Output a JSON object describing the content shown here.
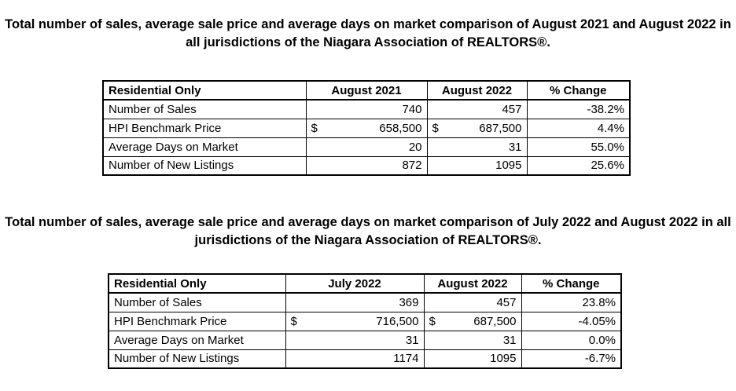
{
  "sections": [
    {
      "title": "Total number of sales, average sale price and average days on market comparison of August 2021 and August 2022 in all jurisdictions of the Niagara Association of REALTORS®.",
      "headers": [
        "Residential Only",
        "August 2021",
        "August 2022",
        "% Change"
      ],
      "rows": [
        {
          "label": "Number of Sales",
          "a": "740",
          "b": "457",
          "change": "-38.2%"
        },
        {
          "label": "HPI Benchmark Price",
          "a_sym": "$",
          "a": "658,500",
          "b_sym": "$",
          "b": "687,500",
          "change": "4.4%"
        },
        {
          "label": "Average Days on Market",
          "a": "20",
          "b": "31",
          "change": "55.0%"
        },
        {
          "label": "Number of New Listings",
          "a": "872",
          "b": "1095",
          "change": "25.6%"
        }
      ]
    },
    {
      "title": "Total number of sales, average sale price and average days on market comparison of July 2022 and August 2022 in all jurisdictions of the Niagara Association of REALTORS®.",
      "headers": [
        "Residential Only",
        "July 2022",
        "August 2022",
        "% Change"
      ],
      "rows": [
        {
          "label": "Number of Sales",
          "a": "369",
          "b": "457",
          "change": "23.8%"
        },
        {
          "label": "HPI Benchmark Price",
          "a_sym": "$",
          "a": "716,500",
          "b_sym": "$",
          "b": "687,500",
          "change": "-4.05%"
        },
        {
          "label": "Average Days on Market",
          "a": "31",
          "b": "31",
          "change": "0.0%"
        },
        {
          "label": "Number of New Listings",
          "a": "1174",
          "b": "1095",
          "change": "-6.7%"
        }
      ]
    }
  ]
}
